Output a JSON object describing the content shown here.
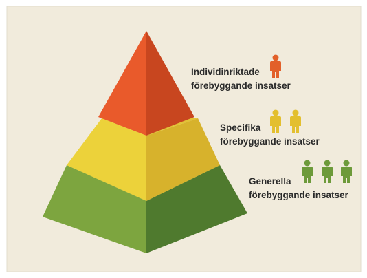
{
  "levels": [
    {
      "line1": "Individinriktade",
      "line2": "förebyggande insatser"
    },
    {
      "line1": "Specifika",
      "line2": "förebyggande insatser"
    },
    {
      "line1": "Generella",
      "line2": "förebyggande insatser"
    }
  ]
}
